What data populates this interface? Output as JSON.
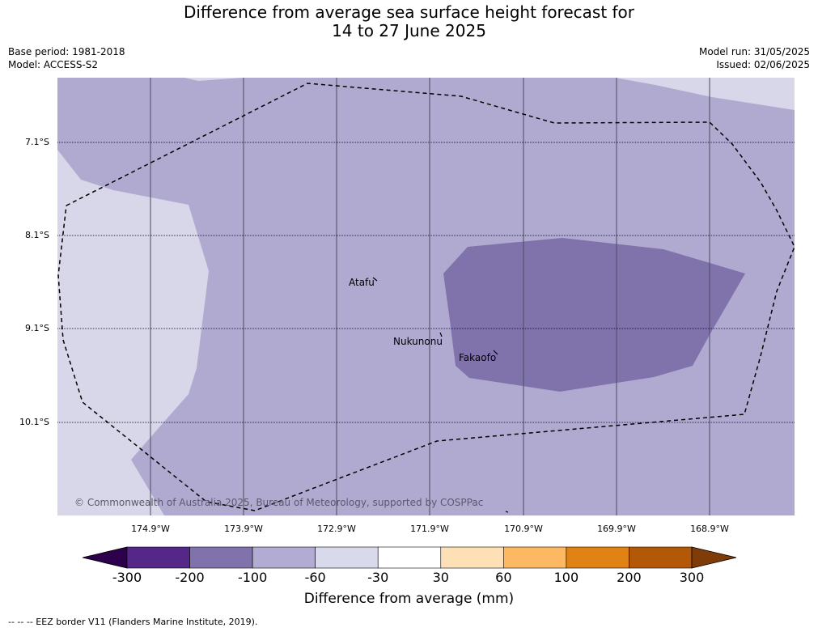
{
  "header": {
    "title_line1": "Difference from average sea surface height forecast for",
    "title_line2": "14 to 27 June 2025",
    "base_period": "Base period: 1981-2018",
    "model": "Model: ACCESS-S2",
    "model_run": "Model run: 31/05/2025",
    "issued": "Issued: 02/06/2025"
  },
  "map": {
    "latitudes": [
      "7.1°S",
      "8.1°S",
      "9.1°S",
      "10.1°S"
    ],
    "longitudes": [
      "174.9°W",
      "173.9°W",
      "172.9°W",
      "171.9°W",
      "170.9°W",
      "169.9°W",
      "168.9°W"
    ],
    "places": [
      {
        "name": "Atafu"
      },
      {
        "name": "Nukunonu"
      },
      {
        "name": "Fakaofo"
      }
    ],
    "copyright": "© Commonwealth of Australia 2025, Bureau of Meteorology, supported by COSPPac",
    "colors": {
      "minus_30_to_minus_60": "#d7d7e9",
      "minus_60_to_minus_100": "#b0aad1",
      "minus_100_to_minus_200": "#8073ac"
    }
  },
  "colorbar": {
    "ticks": [
      "-300",
      "-200",
      "-100",
      "-60",
      "-30",
      "30",
      "60",
      "100",
      "200",
      "300"
    ],
    "colors": [
      "#542788",
      "#8073ac",
      "#b2abd2",
      "#d8daeb",
      "#ffffff",
      "#fee0b6",
      "#fdb863",
      "#e08214",
      "#b35806"
    ],
    "extend_low": "#2d004b",
    "extend_high": "#7f3b08",
    "label": "Difference from average (mm)"
  },
  "legend_note": "--  --  -- EEZ border V11 (Flanders Marine Institute, 2019)."
}
